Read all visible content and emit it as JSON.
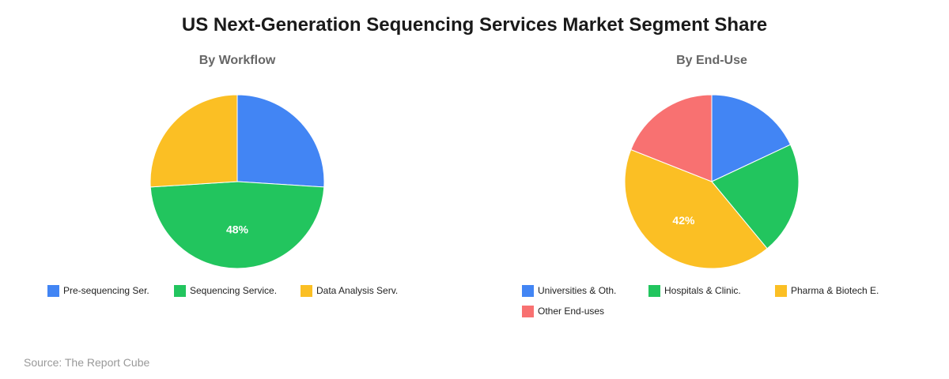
{
  "title": "US Next-Generation Sequencing Services Market Segment Share",
  "source": "Source: The Report Cube",
  "chart_data": [
    {
      "type": "pie",
      "title": "By Workflow",
      "slices": [
        {
          "label": "Pre-sequencing Ser.",
          "value": 26,
          "color": "#4285F4",
          "display": ""
        },
        {
          "label": "Sequencing Service.",
          "value": 48,
          "color": "#22C55E",
          "display": "48%"
        },
        {
          "label": "Data Analysis Serv.",
          "value": 26,
          "color": "#FBBF24",
          "display": ""
        }
      ],
      "legend": "bottom"
    },
    {
      "type": "pie",
      "title": "By End-Use",
      "slices": [
        {
          "label": "Universities & Oth.",
          "value": 18,
          "color": "#4285F4",
          "display": ""
        },
        {
          "label": "Hospitals & Clinic.",
          "value": 21,
          "color": "#22C55E",
          "display": ""
        },
        {
          "label": "Pharma & Biotech E.",
          "value": 42,
          "color": "#FBBF24",
          "display": "42%"
        },
        {
          "label": "Other End-uses",
          "value": 19,
          "color": "#F87171",
          "display": ""
        }
      ],
      "legend": "bottom"
    }
  ]
}
